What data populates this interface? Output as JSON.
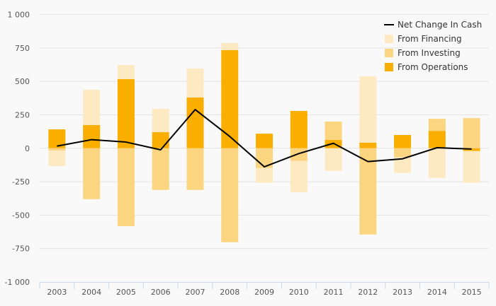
{
  "chart_data": {
    "type": "bar",
    "stacked": true,
    "title": "",
    "xlabel": "",
    "ylabel": "",
    "ylim": [
      -1000,
      1000
    ],
    "yticks": [
      1000,
      750,
      500,
      250,
      0,
      -250,
      -500,
      -750,
      -1000
    ],
    "ytick_labels": [
      "1 000",
      "750",
      "500",
      "250",
      "0",
      "-250",
      "-500",
      "-750",
      "-1 000"
    ],
    "grid": true,
    "legend_position": "top-right",
    "categories": [
      "2003",
      "2004",
      "2005",
      "2006",
      "2007",
      "2008",
      "2009",
      "2010",
      "2011",
      "2012",
      "2013",
      "2014",
      "2015"
    ],
    "series": [
      {
        "name": "From Operations",
        "type": "bar",
        "color": "#f9ae00",
        "values": [
          141,
          173,
          517,
          120,
          379,
          734,
          109,
          279,
          63,
          41,
          99,
          130,
          -21
        ]
      },
      {
        "name": "From Investing",
        "type": "bar",
        "color": "#fbd580",
        "values": [
          -18,
          -381,
          -582,
          -312,
          -312,
          -703,
          -148,
          -95,
          136,
          -645,
          -67,
          90,
          225
        ]
      },
      {
        "name": "From Financing",
        "type": "bar",
        "color": "#fdeac2",
        "values": [
          -116,
          264,
          105,
          175,
          217,
          53,
          -111,
          -233,
          -169,
          497,
          -118,
          -222,
          -238
        ]
      },
      {
        "name": "Net Change In Cash",
        "type": "line",
        "color": "#000000",
        "values": [
          16,
          64,
          46,
          -12,
          289,
          88,
          -139,
          -40,
          37,
          -100,
          -79,
          4,
          -6
        ]
      }
    ],
    "legend_order": [
      "Net Change In Cash",
      "From Financing",
      "From Investing",
      "From Operations"
    ]
  }
}
